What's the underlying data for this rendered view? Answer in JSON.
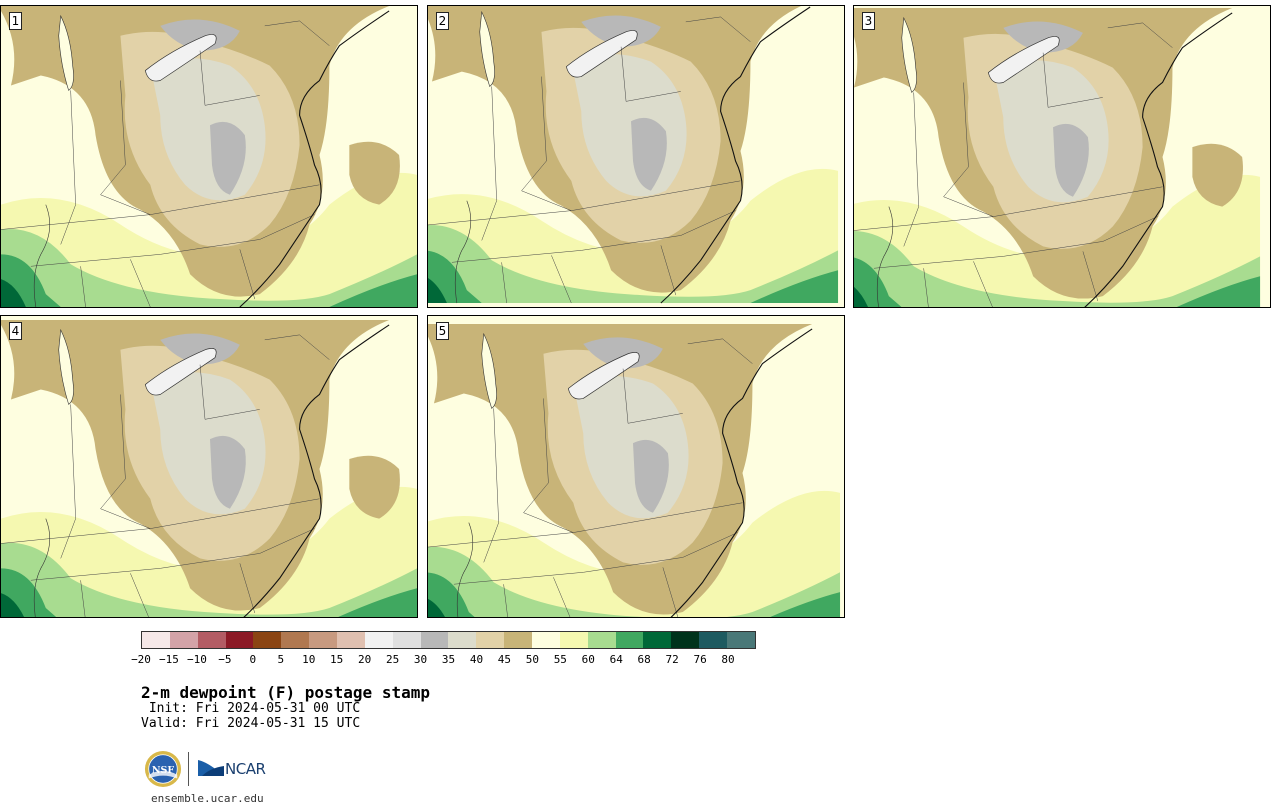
{
  "panels": [
    {
      "label": "1"
    },
    {
      "label": "2"
    },
    {
      "label": "3"
    },
    {
      "label": "4"
    },
    {
      "label": "5"
    }
  ],
  "colorbar": {
    "colors": [
      "#f5e8e8",
      "#d4a3a8",
      "#b35c64",
      "#8c1a26",
      "#8b4513",
      "#b07850",
      "#c89a80",
      "#e0c0b0",
      "#f2f2f2",
      "#e0e0e0",
      "#b8b8b8",
      "#dcdccc",
      "#e2d2a8",
      "#c8b478",
      "#fefee0",
      "#f5f8b0",
      "#a8dc90",
      "#40a860",
      "#006838",
      "#00331c",
      "#1d5a60",
      "#4a7878"
    ],
    "tick_labels": [
      "−20",
      "−15",
      "−10",
      "−5",
      "0",
      "5",
      "10",
      "15",
      "20",
      "25",
      "30",
      "35",
      "40",
      "45",
      "50",
      "55",
      "60",
      "64",
      "68",
      "72",
      "76",
      "80"
    ]
  },
  "map_colors": {
    "very_moist": "#fefee0",
    "moist": "#f5f8b0",
    "green_light": "#a8dc90",
    "green_mid": "#40a860",
    "green_dark": "#006838",
    "tan_dark": "#c8b478",
    "tan_light": "#e2d2a8",
    "gray_light": "#dcdccc",
    "gray_mid": "#b8b8b8",
    "lake": "#f2f2f2"
  },
  "title": "2-m dewpoint (F) postage stamp",
  "init": " Init: Fri 2024-05-31 00 UTC",
  "valid": "Valid: Fri 2024-05-31 15 UTC",
  "logos": {
    "nsf": "NSF",
    "ncar": "NCAR"
  },
  "site": "ensemble.ucar.edu"
}
